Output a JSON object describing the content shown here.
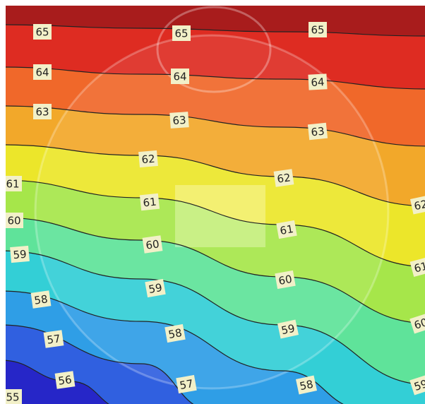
{
  "chart_data": {
    "type": "contour",
    "levels": [
      55,
      56,
      57,
      58,
      59,
      60,
      61,
      62,
      63,
      64,
      65
    ],
    "colors": [
      "#1a1aa8",
      "#2626c8",
      "#3060e0",
      "#2f9ee6",
      "#33cfd6",
      "#5fe39a",
      "#a6e64a",
      "#ece62a",
      "#f2a82a",
      "#f0682a",
      "#de2c22",
      "#a81c1c"
    ]
  }
}
